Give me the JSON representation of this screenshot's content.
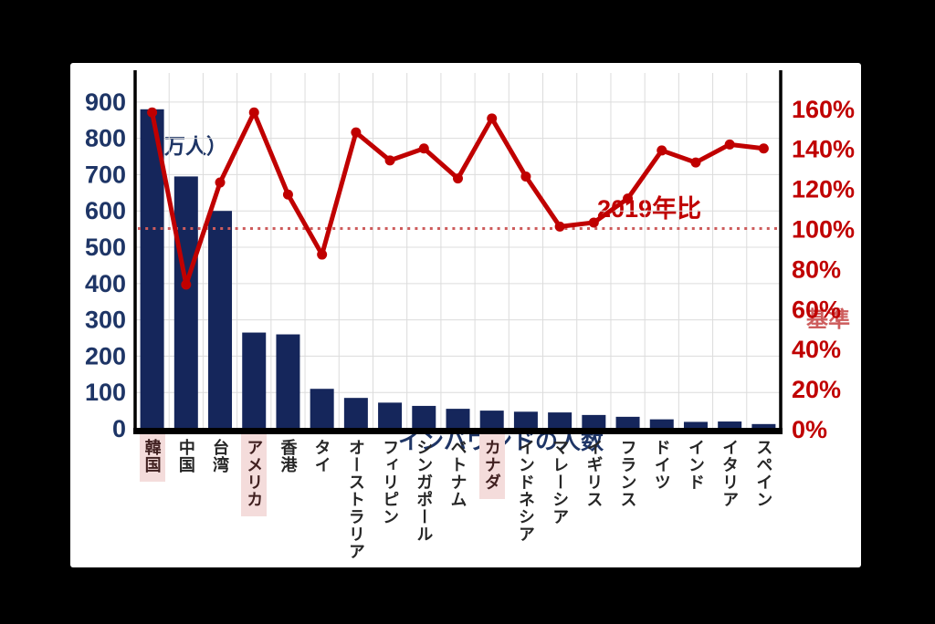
{
  "page": {
    "background_color": "#000000"
  },
  "panel": {
    "background_color": "#ffffff"
  },
  "annotations": {
    "left_axis_unit": "（万人）",
    "line_series_label": "2019年比",
    "baseline_label": "基準",
    "bar_series_label": "インバウンドの人数"
  },
  "colors": {
    "bar": "#15265b",
    "line": "#c00000",
    "baseline": "#cd5c5c",
    "left_axis_text": "#1e3566",
    "right_axis_text": "#c00000",
    "grid": "#dcdcdc",
    "axis": "#000000",
    "highlight_bg": "#f4dcdb",
    "category_text": "#262626",
    "highlight_text": "#402020"
  },
  "chart_data": {
    "type": "bar+line",
    "title": "",
    "categories": [
      "韓国",
      "中国",
      "台湾",
      "アメリカ",
      "香港",
      "タイ",
      "オーストラリア",
      "フィリピン",
      "シンガポール",
      "ベトナム",
      "カナダ",
      "インドネシア",
      "マレーシア",
      "イギリス",
      "フランス",
      "ドイツ",
      "インド",
      "イタリア",
      "スペイン"
    ],
    "highlighted_categories": [
      "韓国",
      "アメリカ",
      "カナダ"
    ],
    "series": [
      {
        "name": "インバウンドの人数",
        "type": "bar",
        "axis": "left",
        "unit": "万人",
        "values": [
          880,
          695,
          600,
          265,
          260,
          110,
          85,
          72,
          63,
          55,
          50,
          47,
          45,
          38,
          33,
          26,
          19,
          20,
          13
        ]
      },
      {
        "name": "2019年比",
        "type": "line",
        "axis": "right",
        "unit": "%",
        "values": [
          158,
          72,
          123,
          158,
          117,
          87,
          148,
          134,
          140,
          125,
          155,
          126,
          101,
          103,
          115,
          139,
          133,
          142,
          140
        ]
      }
    ],
    "baseline": {
      "label": "基準",
      "axis": "right",
      "value": 100,
      "style": "dotted"
    },
    "left_axis": {
      "label": "（万人）",
      "ticks": [
        0,
        100,
        200,
        300,
        400,
        500,
        600,
        700,
        800,
        900
      ],
      "range": [
        0,
        980
      ]
    },
    "right_axis": {
      "ticks": [
        "0%",
        "20%",
        "40%",
        "60%",
        "80%",
        "100%",
        "120%",
        "140%",
        "160%"
      ],
      "tick_values": [
        0,
        20,
        40,
        60,
        80,
        100,
        120,
        140,
        160
      ],
      "range": [
        0,
        177.7
      ]
    },
    "grid": true,
    "legend_position": "none (series labeled by in-plot text)"
  }
}
